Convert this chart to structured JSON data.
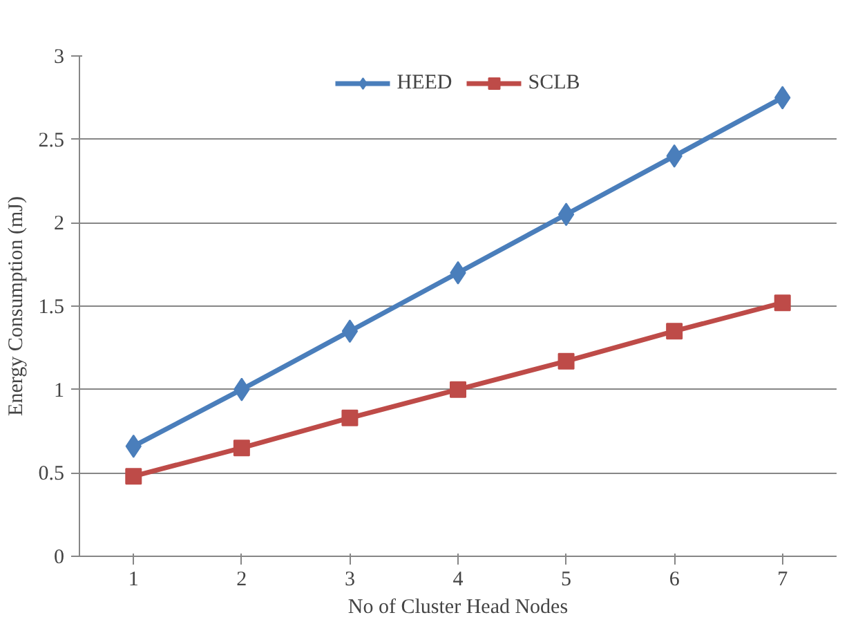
{
  "chart_data": {
    "type": "line",
    "xlabel": "No of Cluster Head Nodes",
    "ylabel": "Energy Consumption (mJ)",
    "categories": [
      "1",
      "2",
      "3",
      "4",
      "5",
      "6",
      "7"
    ],
    "series": [
      {
        "name": "HEED",
        "color": "#4a7ebb",
        "marker": "diamond",
        "values": [
          0.66,
          1.0,
          1.35,
          1.7,
          2.05,
          2.4,
          2.75
        ]
      },
      {
        "name": "SCLB",
        "color": "#be4b48",
        "marker": "square",
        "values": [
          0.48,
          0.65,
          0.83,
          1.0,
          1.17,
          1.35,
          1.52
        ]
      }
    ],
    "ylim": [
      0,
      3
    ],
    "yticks": [
      0,
      0.5,
      1,
      1.5,
      2,
      2.5,
      3
    ],
    "grid": "y",
    "legend": "top"
  }
}
